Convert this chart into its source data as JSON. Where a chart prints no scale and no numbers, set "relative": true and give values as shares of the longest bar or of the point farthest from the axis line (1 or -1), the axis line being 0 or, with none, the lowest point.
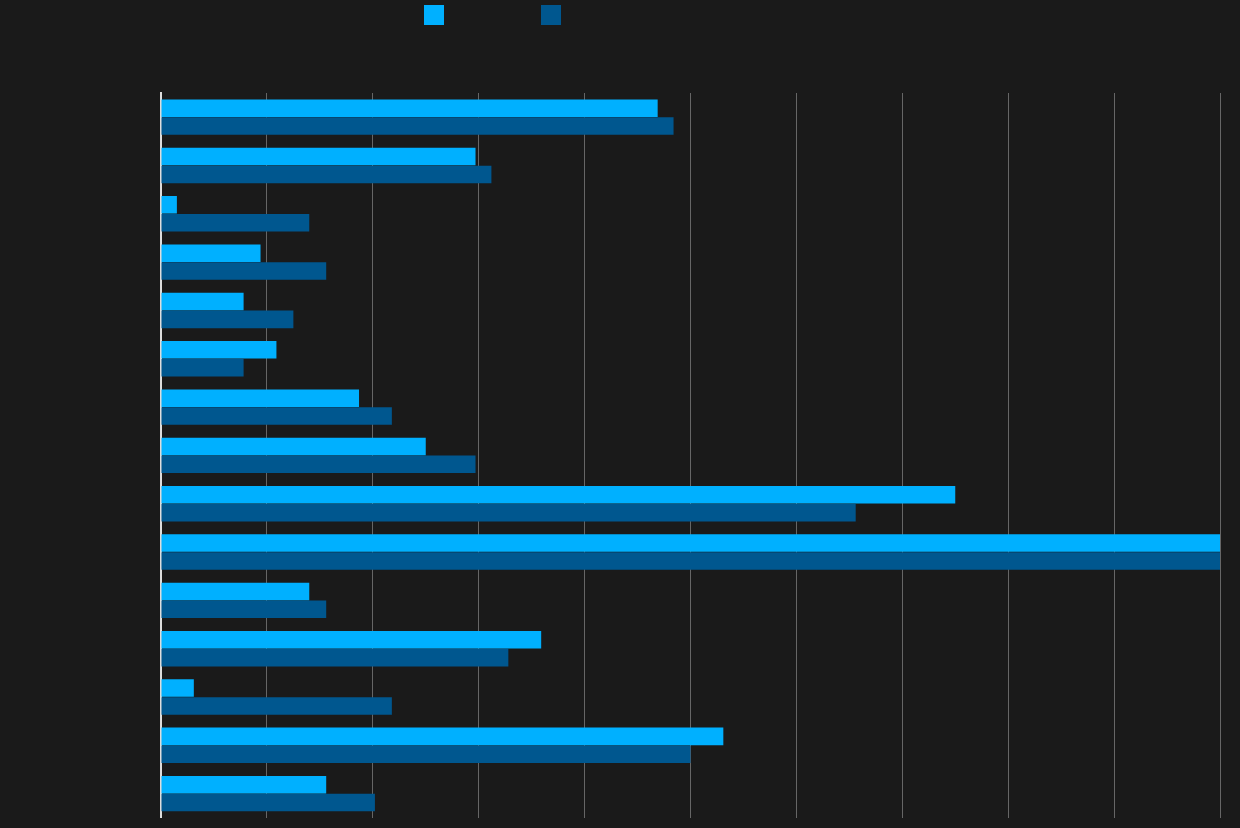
{
  "chart_data": {
    "type": "bar",
    "orientation": "horizontal",
    "relative": true,
    "grid": "x",
    "categories": [
      null,
      null,
      null,
      null,
      null,
      null,
      null,
      null,
      null,
      null,
      null,
      null,
      null,
      null,
      null
    ],
    "series": [
      {
        "color": "#00b0ff",
        "values": [
          0.469,
          0.297,
          0.015,
          0.094,
          0.078,
          0.109,
          0.187,
          0.25,
          0.75,
          1,
          0.14,
          0.359,
          0.031,
          0.531,
          0.156
        ]
      },
      {
        "color": "#00578f",
        "values": [
          0.484,
          0.312,
          0.14,
          0.156,
          0.125,
          0.078,
          0.218,
          0.297,
          0.656,
          1,
          0.156,
          0.328,
          0.218,
          0.5,
          0.202
        ]
      }
    ]
  }
}
